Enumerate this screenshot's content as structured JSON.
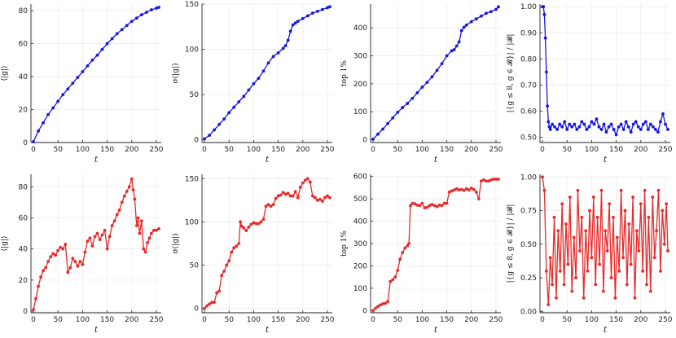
{
  "chart_data": [
    {
      "type": "line",
      "id": "p1",
      "color": "#1515e6",
      "xlabel": "t",
      "ylabel": "⟨|g|⟩",
      "xlim": [
        -5,
        260
      ],
      "ylim": [
        0,
        84
      ],
      "xticks": [
        0,
        50,
        100,
        150,
        200,
        250
      ],
      "yticks": [
        0,
        20,
        40,
        60,
        80
      ],
      "grid": true,
      "x": [
        0,
        10,
        20,
        30,
        40,
        50,
        60,
        70,
        80,
        90,
        100,
        110,
        120,
        130,
        140,
        150,
        160,
        170,
        180,
        190,
        200,
        210,
        220,
        230,
        240,
        250,
        255
      ],
      "y": [
        0.5,
        7,
        12,
        17,
        21,
        25,
        29,
        32.5,
        36,
        39.5,
        43,
        46.5,
        50,
        53,
        56.5,
        60,
        63,
        66,
        68.5,
        71,
        73.5,
        75.5,
        77.5,
        79,
        80.5,
        81.5,
        82
      ]
    },
    {
      "type": "line",
      "id": "p2",
      "color": "#1515e6",
      "xlabel": "t",
      "ylabel": "σ(|g|)",
      "xlim": [
        -5,
        260
      ],
      "ylim": [
        -3,
        150
      ],
      "xticks": [
        0,
        50,
        100,
        150,
        200,
        250
      ],
      "yticks": [
        0,
        50,
        100,
        150
      ],
      "grid": true,
      "x": [
        0,
        10,
        20,
        30,
        40,
        50,
        60,
        70,
        80,
        90,
        100,
        110,
        120,
        130,
        140,
        150,
        160,
        165,
        170,
        175,
        180,
        185,
        190,
        200,
        210,
        220,
        230,
        240,
        250,
        255
      ],
      "y": [
        1,
        5,
        11,
        17,
        23,
        30,
        36,
        42,
        48,
        55,
        62,
        68,
        76,
        85,
        92,
        96,
        101,
        104,
        110,
        120,
        127,
        129,
        131,
        134,
        137,
        140,
        142,
        144,
        146,
        147
      ]
    },
    {
      "type": "line",
      "id": "p3",
      "color": "#1515e6",
      "xlabel": "t",
      "ylabel": "top 1%",
      "xlim": [
        -5,
        260
      ],
      "ylim": [
        -10,
        485
      ],
      "xticks": [
        0,
        50,
        100,
        150,
        200,
        250
      ],
      "yticks": [
        0,
        100,
        200,
        300,
        400
      ],
      "grid": true,
      "x": [
        0,
        10,
        20,
        30,
        40,
        50,
        60,
        70,
        80,
        90,
        100,
        110,
        120,
        130,
        140,
        150,
        160,
        165,
        170,
        175,
        180,
        185,
        190,
        200,
        210,
        220,
        230,
        240,
        250,
        255
      ],
      "y": [
        2,
        20,
        38,
        58,
        78,
        98,
        115,
        130,
        148,
        168,
        188,
        205,
        225,
        248,
        272,
        300,
        318,
        322,
        335,
        350,
        390,
        402,
        410,
        422,
        432,
        442,
        452,
        458,
        466,
        475
      ]
    },
    {
      "type": "line",
      "id": "p4",
      "color": "#1515e6",
      "xlabel": "t",
      "ylabel": "|{g ≤ 8, g ∈ 𝓑}| / |𝓑|",
      "xlim": [
        -5,
        260
      ],
      "ylim": [
        0.48,
        1.01
      ],
      "xticks": [
        0,
        50,
        100,
        150,
        200,
        250
      ],
      "yticks": [
        0.5,
        0.6,
        0.7,
        0.8,
        0.9,
        1.0
      ],
      "grid": true,
      "x": [
        0,
        2,
        4,
        6,
        8,
        10,
        12,
        14,
        16,
        20,
        25,
        30,
        35,
        40,
        45,
        50,
        55,
        60,
        65,
        70,
        75,
        80,
        85,
        90,
        95,
        100,
        105,
        110,
        115,
        120,
        125,
        130,
        135,
        140,
        145,
        150,
        155,
        160,
        165,
        170,
        175,
        180,
        185,
        190,
        195,
        200,
        205,
        210,
        215,
        220,
        225,
        230,
        235,
        240,
        245,
        250,
        255
      ],
      "y": [
        1.0,
        1.0,
        0.97,
        0.88,
        0.75,
        0.62,
        0.56,
        0.54,
        0.53,
        0.55,
        0.54,
        0.53,
        0.55,
        0.54,
        0.56,
        0.53,
        0.55,
        0.54,
        0.55,
        0.53,
        0.54,
        0.56,
        0.55,
        0.53,
        0.54,
        0.56,
        0.55,
        0.57,
        0.54,
        0.53,
        0.55,
        0.52,
        0.54,
        0.55,
        0.53,
        0.51,
        0.54,
        0.55,
        0.53,
        0.56,
        0.54,
        0.52,
        0.55,
        0.56,
        0.54,
        0.53,
        0.55,
        0.56,
        0.53,
        0.55,
        0.54,
        0.53,
        0.52,
        0.56,
        0.59,
        0.55,
        0.53
      ]
    },
    {
      "type": "line",
      "id": "p5",
      "color": "#e62a2a",
      "xlabel": "t",
      "ylabel": "⟨|g|⟩",
      "xlim": [
        -5,
        260
      ],
      "ylim": [
        -1,
        88
      ],
      "xticks": [
        0,
        50,
        100,
        150,
        200,
        250
      ],
      "yticks": [
        0,
        20,
        40,
        60,
        80
      ],
      "grid": true,
      "x": [
        0,
        5,
        10,
        15,
        20,
        25,
        30,
        35,
        40,
        45,
        50,
        55,
        60,
        65,
        70,
        75,
        80,
        85,
        90,
        95,
        100,
        105,
        110,
        115,
        120,
        125,
        130,
        135,
        140,
        145,
        150,
        155,
        160,
        165,
        170,
        175,
        180,
        185,
        190,
        195,
        200,
        203,
        206,
        210,
        213,
        216,
        220,
        224,
        228,
        232,
        236,
        240,
        245,
        250,
        255
      ],
      "y": [
        1,
        8,
        16,
        22,
        26,
        28,
        32,
        35,
        37,
        36,
        39,
        41,
        40,
        43,
        25,
        28,
        34,
        32,
        29,
        32,
        30,
        38,
        45,
        47,
        42,
        48,
        50,
        46,
        49,
        52,
        40,
        48,
        55,
        58,
        62,
        65,
        70,
        74,
        77,
        80,
        85,
        78,
        72,
        55,
        60,
        50,
        58,
        40,
        38,
        44,
        47,
        50,
        52,
        52,
        53
      ]
    },
    {
      "type": "line",
      "id": "p6",
      "color": "#e62a2a",
      "xlabel": "t",
      "ylabel": "σ(|g|)",
      "xlim": [
        -5,
        260
      ],
      "ylim": [
        -5,
        155
      ],
      "xticks": [
        0,
        50,
        100,
        150,
        200,
        250
      ],
      "yticks": [
        0,
        50,
        100,
        150
      ],
      "grid": true,
      "x": [
        0,
        5,
        10,
        15,
        20,
        25,
        30,
        35,
        40,
        45,
        50,
        55,
        60,
        65,
        70,
        73,
        76,
        80,
        85,
        90,
        95,
        100,
        105,
        110,
        115,
        120,
        125,
        130,
        135,
        140,
        145,
        150,
        155,
        160,
        165,
        170,
        175,
        180,
        185,
        190,
        195,
        200,
        205,
        210,
        215,
        220,
        225,
        230,
        235,
        240,
        245,
        250,
        255
      ],
      "y": [
        0,
        3,
        5,
        7,
        7,
        18,
        20,
        38,
        43,
        50,
        55,
        65,
        70,
        72,
        75,
        100,
        95,
        93,
        90,
        94,
        97,
        99,
        98,
        98,
        100,
        103,
        118,
        120,
        118,
        120,
        127,
        130,
        131,
        134,
        132,
        133,
        130,
        130,
        135,
        128,
        140,
        145,
        148,
        150,
        146,
        130,
        128,
        125,
        126,
        124,
        128,
        130,
        128
      ]
    },
    {
      "type": "line",
      "id": "p7",
      "color": "#e62a2a",
      "xlabel": "t",
      "ylabel": "top 1%",
      "xlim": [
        -5,
        260
      ],
      "ylim": [
        -10,
        610
      ],
      "xticks": [
        0,
        50,
        100,
        150,
        200,
        250
      ],
      "yticks": [
        0,
        100,
        200,
        300,
        400,
        500,
        600
      ],
      "grid": true,
      "x": [
        0,
        5,
        10,
        15,
        20,
        25,
        30,
        35,
        40,
        45,
        50,
        55,
        60,
        65,
        70,
        73,
        76,
        80,
        85,
        90,
        95,
        100,
        105,
        110,
        115,
        120,
        125,
        130,
        135,
        140,
        145,
        150,
        155,
        160,
        165,
        170,
        175,
        180,
        185,
        190,
        195,
        200,
        205,
        210,
        215,
        220,
        225,
        230,
        235,
        240,
        245,
        250,
        255
      ],
      "y": [
        0,
        10,
        18,
        25,
        30,
        32,
        40,
        130,
        138,
        150,
        180,
        230,
        260,
        280,
        290,
        300,
        470,
        480,
        478,
        472,
        470,
        480,
        460,
        462,
        470,
        475,
        470,
        465,
        472,
        470,
        480,
        480,
        530,
        535,
        540,
        545,
        540,
        542,
        538,
        545,
        540,
        548,
        542,
        530,
        500,
        580,
        585,
        580,
        580,
        585,
        588,
        588,
        588
      ]
    },
    {
      "type": "line",
      "id": "p8",
      "color": "#e62a2a",
      "xlabel": "t",
      "ylabel": "|{g ≤ 8, g ∈ 𝓑}| / |𝓑|",
      "xlim": [
        -5,
        260
      ],
      "ylim": [
        -0.01,
        1.02
      ],
      "xticks": [
        0,
        50,
        100,
        150,
        200,
        250
      ],
      "yticks": [
        0.0,
        0.25,
        0.5,
        0.75,
        1.0
      ],
      "grid": true,
      "x": [
        0,
        4,
        8,
        12,
        16,
        20,
        24,
        28,
        32,
        36,
        40,
        44,
        48,
        52,
        56,
        60,
        64,
        68,
        72,
        76,
        80,
        84,
        88,
        92,
        96,
        100,
        104,
        108,
        112,
        116,
        120,
        124,
        128,
        132,
        136,
        140,
        144,
        148,
        152,
        156,
        160,
        164,
        168,
        172,
        176,
        180,
        184,
        188,
        192,
        196,
        200,
        204,
        208,
        212,
        216,
        220,
        224,
        228,
        232,
        236,
        240,
        244,
        248,
        252,
        255
      ],
      "y": [
        1.0,
        0.9,
        0.3,
        0.05,
        0.4,
        0.2,
        0.7,
        0.1,
        0.6,
        0.3,
        0.8,
        0.2,
        0.65,
        0.35,
        0.85,
        0.15,
        0.55,
        0.25,
        0.9,
        0.45,
        0.7,
        0.1,
        0.6,
        0.3,
        0.75,
        0.4,
        0.85,
        0.2,
        0.7,
        0.35,
        0.9,
        0.15,
        0.6,
        0.45,
        0.8,
        0.25,
        0.7,
        0.1,
        0.55,
        0.3,
        0.9,
        0.4,
        0.75,
        0.2,
        0.65,
        0.35,
        0.85,
        0.1,
        0.6,
        0.45,
        0.8,
        0.3,
        0.9,
        0.2,
        0.7,
        0.15,
        0.85,
        0.4,
        0.6,
        0.9,
        0.3,
        0.75,
        0.5,
        0.8,
        0.45
      ]
    }
  ]
}
